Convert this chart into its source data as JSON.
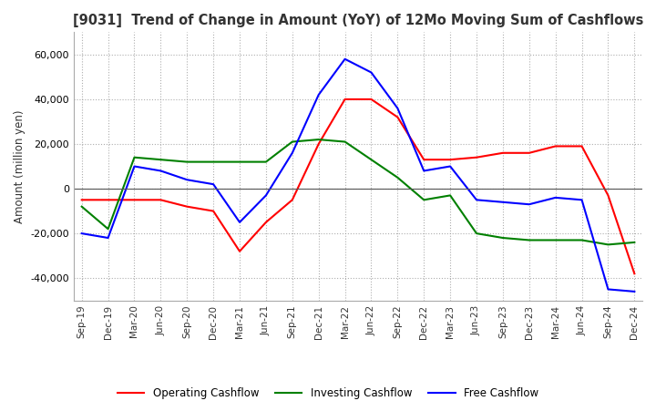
{
  "title": "[9031]  Trend of Change in Amount (YoY) of 12Mo Moving Sum of Cashflows",
  "ylabel": "Amount (million yen)",
  "x_labels": [
    "Sep-19",
    "Dec-19",
    "Mar-20",
    "Jun-20",
    "Sep-20",
    "Dec-20",
    "Mar-21",
    "Jun-21",
    "Sep-21",
    "Dec-21",
    "Mar-22",
    "Jun-22",
    "Sep-22",
    "Dec-22",
    "Mar-23",
    "Jun-23",
    "Sep-23",
    "Dec-23",
    "Mar-24",
    "Jun-24",
    "Sep-24",
    "Dec-24"
  ],
  "operating": [
    -5000,
    -5000,
    -5000,
    -5000,
    -8000,
    -10000,
    -28000,
    -15000,
    -5000,
    20000,
    40000,
    40000,
    32000,
    13000,
    13000,
    14000,
    16000,
    16000,
    19000,
    19000,
    -3000,
    -38000
  ],
  "investing": [
    -8000,
    -18000,
    14000,
    13000,
    12000,
    12000,
    12000,
    12000,
    21000,
    22000,
    21000,
    13000,
    5000,
    -5000,
    -3000,
    -20000,
    -22000,
    -23000,
    -23000,
    -23000,
    -25000,
    -24000
  ],
  "free": [
    -20000,
    -22000,
    10000,
    8000,
    4000,
    2000,
    -15000,
    -3000,
    16000,
    42000,
    58000,
    52000,
    36000,
    8000,
    10000,
    -5000,
    -6000,
    -7000,
    -4000,
    -5000,
    -45000,
    -46000
  ],
  "ylim": [
    -50000,
    70000
  ],
  "yticks": [
    -40000,
    -20000,
    0,
    20000,
    40000,
    60000
  ],
  "legend_labels": [
    "Operating Cashflow",
    "Investing Cashflow",
    "Free Cashflow"
  ],
  "line_colors": [
    "#ff0000",
    "#008000",
    "#0000ff"
  ],
  "title_color": "#333333",
  "grid_color": "#999999",
  "background": "#ffffff"
}
